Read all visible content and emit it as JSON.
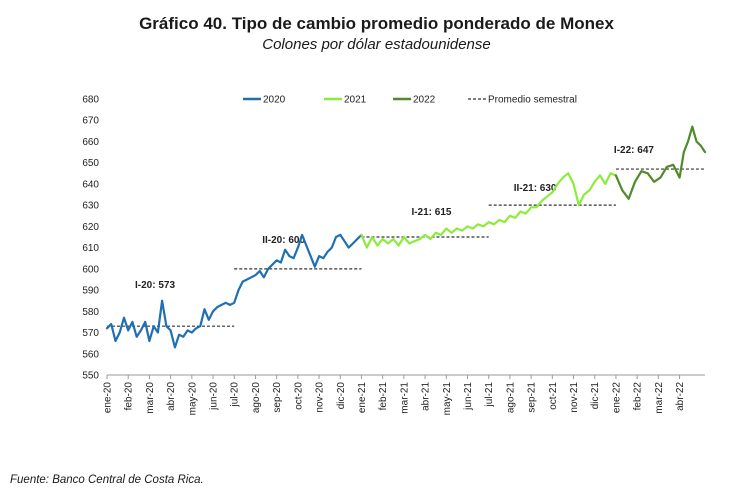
{
  "header": {
    "title_number": "Gráfico 40.",
    "title_text": "Tipo de cambio promedio ponderado de Monex",
    "subtitle": "Colones por dólar estadounidense"
  },
  "source": "Fuente: Banco Central de Costa Rica.",
  "colors": {
    "2020": "#1f6fb5",
    "2021": "#8cec3c",
    "2022": "#4f8a2b",
    "average": "#333333"
  },
  "chart_data": {
    "type": "line",
    "ylim": [
      550,
      680
    ],
    "yticks": [
      "550",
      "560",
      "570",
      "580",
      "590",
      "600",
      "610",
      "620",
      "630",
      "640",
      "650",
      "660",
      "670",
      "680"
    ],
    "xlim": [
      0,
      28
    ],
    "xticks": [
      "ene-20",
      "feb-20",
      "mar-20",
      "abr-20",
      "may-20",
      "jun-20",
      "jul-20",
      "ago-20",
      "sep-20",
      "oct-20",
      "nov-20",
      "dic-20",
      "ene-21",
      "feb-21",
      "mar-21",
      "abr-21",
      "may-21",
      "jun-21",
      "jul-21",
      "ago-21",
      "sep-21",
      "oct-21",
      "nov-21",
      "dic-21",
      "ene-22",
      "feb-22",
      "mar-22",
      "abr-22"
    ],
    "x_unit": "months since ene-20",
    "series": [
      {
        "name": "2020",
        "x": [
          0,
          0.2,
          0.4,
          0.6,
          0.8,
          1.0,
          1.2,
          1.4,
          1.6,
          1.8,
          2.0,
          2.2,
          2.4,
          2.6,
          2.8,
          3.0,
          3.2,
          3.4,
          3.6,
          3.8,
          4.0,
          4.2,
          4.4,
          4.6,
          4.8,
          5.0,
          5.2,
          5.4,
          5.6,
          5.8,
          6.0,
          6.2,
          6.4,
          6.6,
          6.8,
          7.0,
          7.2,
          7.4,
          7.6,
          7.8,
          8.0,
          8.2,
          8.4,
          8.6,
          8.8,
          9.0,
          9.2,
          9.4,
          9.6,
          9.8,
          10.0,
          10.2,
          10.4,
          10.6,
          10.8,
          11.0,
          11.2,
          11.4,
          11.6,
          11.8,
          12.0
        ],
        "values": [
          572,
          574,
          566,
          570,
          577,
          571,
          575,
          568,
          571,
          575,
          566,
          573,
          570,
          585,
          573,
          571,
          563,
          569,
          568,
          571,
          570,
          572,
          573,
          581,
          576,
          580,
          582,
          583,
          584,
          583,
          584,
          590,
          594,
          595,
          596,
          597,
          599,
          596,
          600,
          602,
          604,
          603,
          609,
          606,
          605,
          610,
          616,
          611,
          606,
          601,
          606,
          605,
          608,
          610,
          615,
          616,
          613,
          610,
          612,
          614,
          616
        ]
      },
      {
        "name": "2021",
        "x": [
          12.0,
          12.25,
          12.5,
          12.75,
          13.0,
          13.25,
          13.5,
          13.75,
          14.0,
          14.25,
          14.5,
          14.75,
          15.0,
          15.25,
          15.5,
          15.75,
          16.0,
          16.25,
          16.5,
          16.75,
          17.0,
          17.25,
          17.5,
          17.75,
          18.0,
          18.25,
          18.5,
          18.75,
          19.0,
          19.25,
          19.5,
          19.75,
          20.0,
          20.25,
          20.5,
          20.75,
          21.0,
          21.25,
          21.5,
          21.75,
          22.0,
          22.25,
          22.5,
          22.75,
          23.0,
          23.25,
          23.5,
          23.75,
          24.0
        ],
        "values": [
          616,
          610,
          615,
          611,
          614,
          612,
          614,
          611,
          615,
          612,
          613,
          614,
          616,
          614,
          617,
          616,
          619,
          617,
          619,
          618,
          620,
          619,
          621,
          620,
          622,
          621,
          623,
          622,
          625,
          624,
          627,
          626,
          629,
          629,
          632,
          634,
          636,
          640,
          643,
          645,
          640,
          630,
          635,
          637,
          641,
          644,
          640,
          645,
          644
        ]
      },
      {
        "name": "2022",
        "x": [
          24.0,
          24.3,
          24.6,
          24.9,
          25.2,
          25.5,
          25.8,
          26.1,
          26.4,
          26.7,
          27.0,
          27.2,
          27.4,
          27.6,
          27.8,
          28.0,
          28.2
        ],
        "values": [
          644,
          637,
          633,
          641,
          646,
          645,
          641,
          643,
          648,
          649,
          643,
          655,
          660,
          667,
          660,
          658,
          655
        ]
      }
    ],
    "averages": [
      {
        "label": "I-20: 573",
        "value": 573,
        "x_start": 0,
        "x_end": 6
      },
      {
        "label": "II-20: 600",
        "value": 600,
        "x_start": 6,
        "x_end": 12
      },
      {
        "label": "I-21: 615",
        "value": 615,
        "x_start": 12,
        "x_end": 18
      },
      {
        "label": "II-21: 630",
        "value": 630,
        "x_start": 18,
        "x_end": 24
      },
      {
        "label": "I-22: 647",
        "value": 647,
        "x_start": 24,
        "x_end": 28.2
      }
    ],
    "legend": [
      "2020",
      "2021",
      "2022",
      "Promedio semestral"
    ]
  }
}
